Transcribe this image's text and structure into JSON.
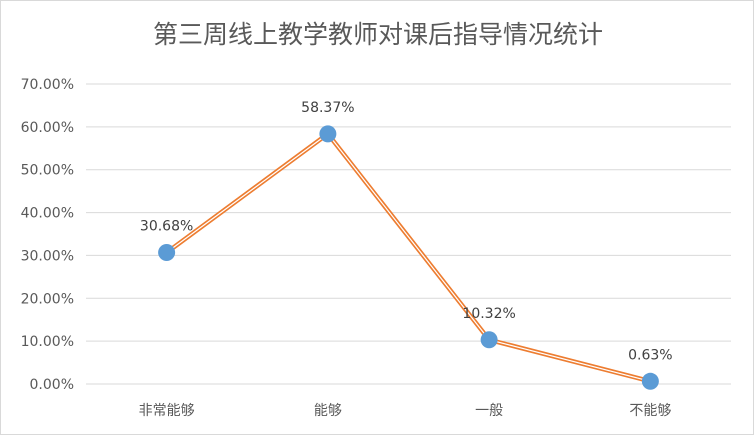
{
  "chart_data": {
    "type": "line",
    "title": "第三周线上教学教师对课后指导情况统计",
    "categories": [
      "非常能够",
      "能够",
      "一般",
      "不能够"
    ],
    "series": [
      {
        "values": [
          30.68,
          58.37,
          10.32,
          0.63
        ]
      }
    ],
    "data_labels": [
      "30.68%",
      "58.37%",
      "10.32%",
      "0.63%"
    ],
    "y_ticks": [
      0,
      10,
      20,
      30,
      40,
      50,
      60,
      70
    ],
    "y_tick_labels": [
      "0.00%",
      "10.00%",
      "20.00%",
      "30.00%",
      "40.00%",
      "50.00%",
      "60.00%",
      "70.00%"
    ],
    "ylim": [
      0,
      70
    ],
    "grid": true,
    "legend": "none",
    "colors": {
      "line": "#ED7D31",
      "marker": "#5B9BD5",
      "grid": "#d9d9d9",
      "text": "#595959"
    }
  }
}
